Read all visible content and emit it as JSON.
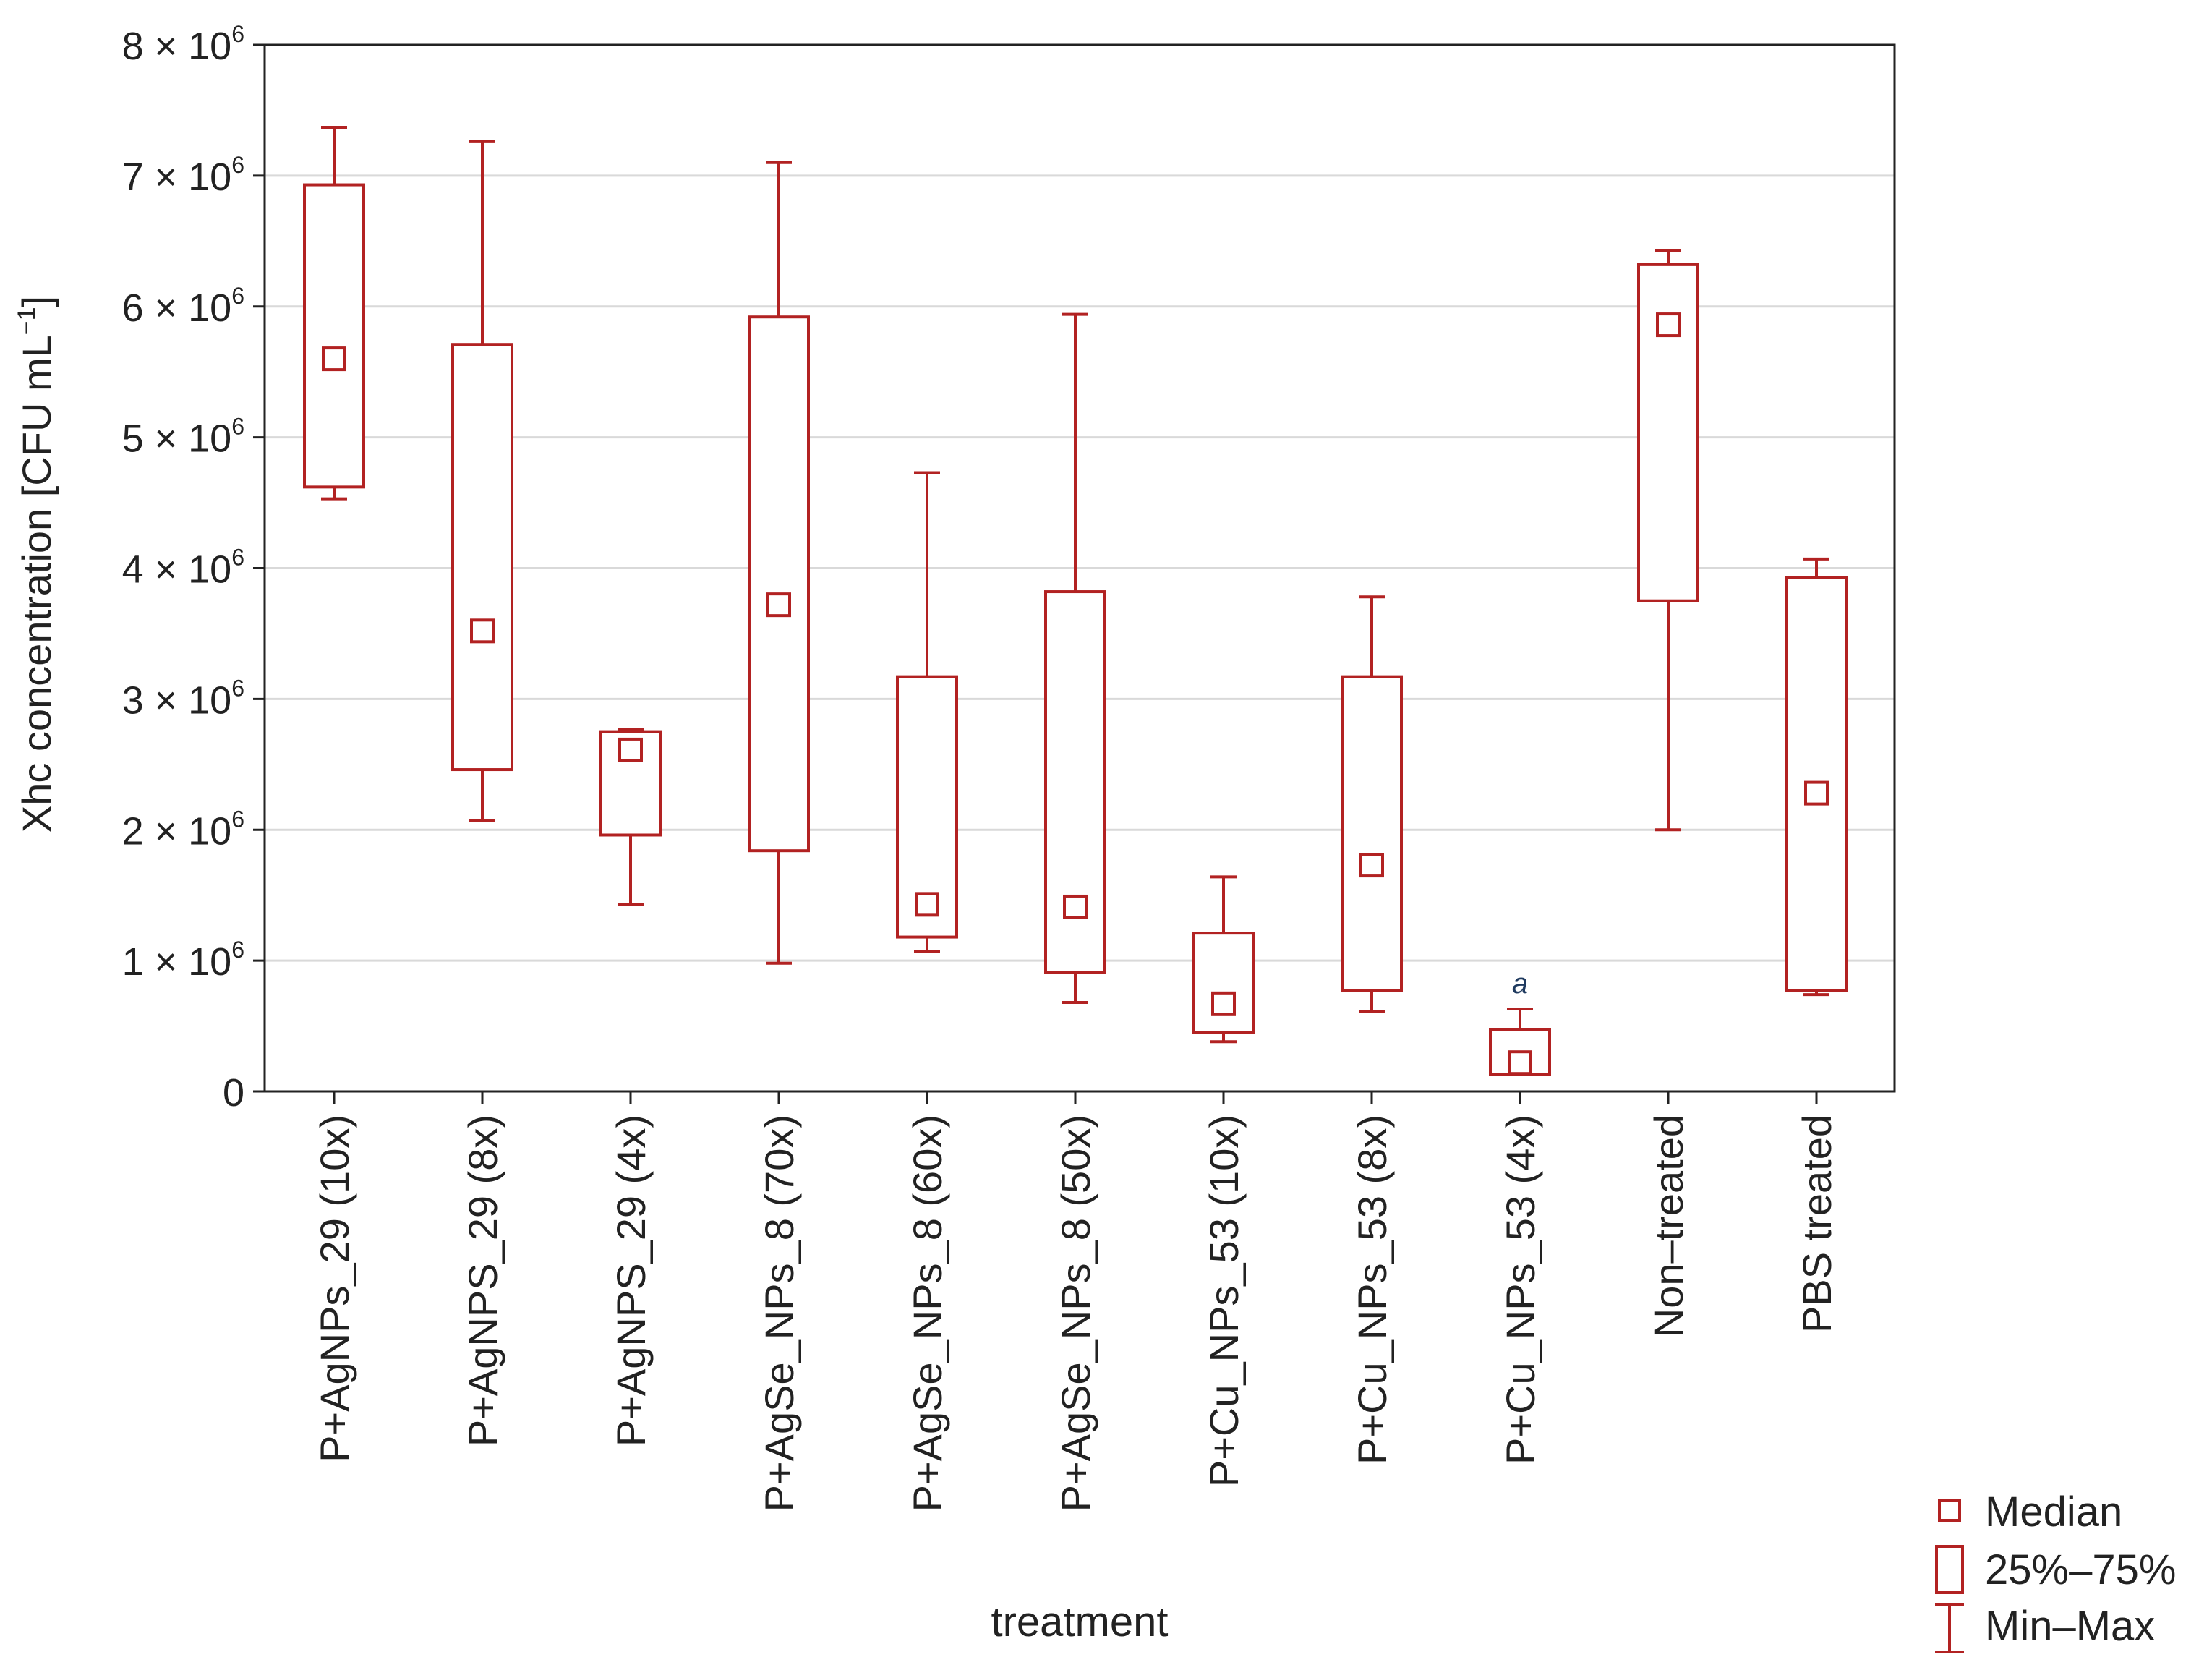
{
  "chart_data": {
    "type": "box",
    "title": "",
    "xlabel": "treatment",
    "ylabel": "Xhc concentration [CFU mL",
    "ylabel_sup": "−1",
    "ylabel_close": "]",
    "ylim": [
      0,
      8000000
    ],
    "yticks": [
      {
        "value": 0,
        "mant": "0",
        "exp": ""
      },
      {
        "value": 1000000,
        "mant": "1 × 10",
        "exp": "6"
      },
      {
        "value": 2000000,
        "mant": "2 × 10",
        "exp": "6"
      },
      {
        "value": 3000000,
        "mant": "3 × 10",
        "exp": "6"
      },
      {
        "value": 4000000,
        "mant": "4 × 10",
        "exp": "6"
      },
      {
        "value": 5000000,
        "mant": "5 × 10",
        "exp": "6"
      },
      {
        "value": 6000000,
        "mant": "6 × 10",
        "exp": "6"
      },
      {
        "value": 7000000,
        "mant": "7 × 10",
        "exp": "6"
      },
      {
        "value": 8000000,
        "mant": "8 × 10",
        "exp": "6"
      }
    ],
    "grid": true,
    "categories": [
      "P+AgNPs_29 (10x)",
      "P+AgNPS_29 (8x)",
      "P+AgNPS_29 (4x)",
      "P+AgSe_NPs_8 (70x)",
      "P+AgSe_NPs_8 (60x)",
      "P+AgSe_NPs_8 (50x)",
      "P+Cu_NPs_53 (10x)",
      "P+Cu_NPs_53 (8x)",
      "P+Cu_NPs_53 (4x)",
      "Non–treated",
      "PBS treated"
    ],
    "series": [
      {
        "name": "P+AgNPs_29 (10x)",
        "min": 4530000,
        "q1": 4620000,
        "median": 5600000,
        "q3": 6930000,
        "max": 7370000
      },
      {
        "name": "P+AgNPS_29 (8x)",
        "min": 2070000,
        "q1": 2460000,
        "median": 3520000,
        "q3": 5710000,
        "max": 7260000
      },
      {
        "name": "P+AgNPS_29 (4x)",
        "min": 1430000,
        "q1": 1960000,
        "median": 2610000,
        "q3": 2750000,
        "max": 2770000
      },
      {
        "name": "P+AgSe_NPs_8 (70x)",
        "min": 980000,
        "q1": 1840000,
        "median": 3720000,
        "q3": 5920000,
        "max": 7100000
      },
      {
        "name": "P+AgSe_NPs_8 (60x)",
        "min": 1070000,
        "q1": 1180000,
        "median": 1430000,
        "q3": 3170000,
        "max": 4730000
      },
      {
        "name": "P+AgSe_NPs_8 (50x)",
        "min": 680000,
        "q1": 910000,
        "median": 1410000,
        "q3": 3820000,
        "max": 5940000
      },
      {
        "name": "P+Cu_NPs_53 (10x)",
        "min": 380000,
        "q1": 450000,
        "median": 670000,
        "q3": 1210000,
        "max": 1640000
      },
      {
        "name": "P+Cu_NPs_53 (8x)",
        "min": 610000,
        "q1": 770000,
        "median": 1730000,
        "q3": 3170000,
        "max": 3780000
      },
      {
        "name": "P+Cu_NPs_53 (4x)",
        "min": 130000,
        "q1": 130000,
        "median": 220000,
        "q3": 470000,
        "max": 630000,
        "annotation": "a"
      },
      {
        "name": "Non–treated",
        "min": 2000000,
        "q1": 3750000,
        "median": 5860000,
        "q3": 6320000,
        "max": 6430000
      },
      {
        "name": "PBS treated",
        "min": 740000,
        "q1": 770000,
        "median": 2280000,
        "q3": 3930000,
        "max": 4070000
      }
    ],
    "legend": {
      "position": "bottom-right",
      "items": [
        {
          "label": "Median",
          "symbol": "median-square"
        },
        {
          "label": "25%–75%",
          "symbol": "box"
        },
        {
          "label": "Min–Max",
          "symbol": "whisker"
        }
      ]
    },
    "colors": {
      "series": "#b22222",
      "grid": "#d9d9d9",
      "axis": "#222222",
      "annotation": "#1f3a5f"
    }
  }
}
